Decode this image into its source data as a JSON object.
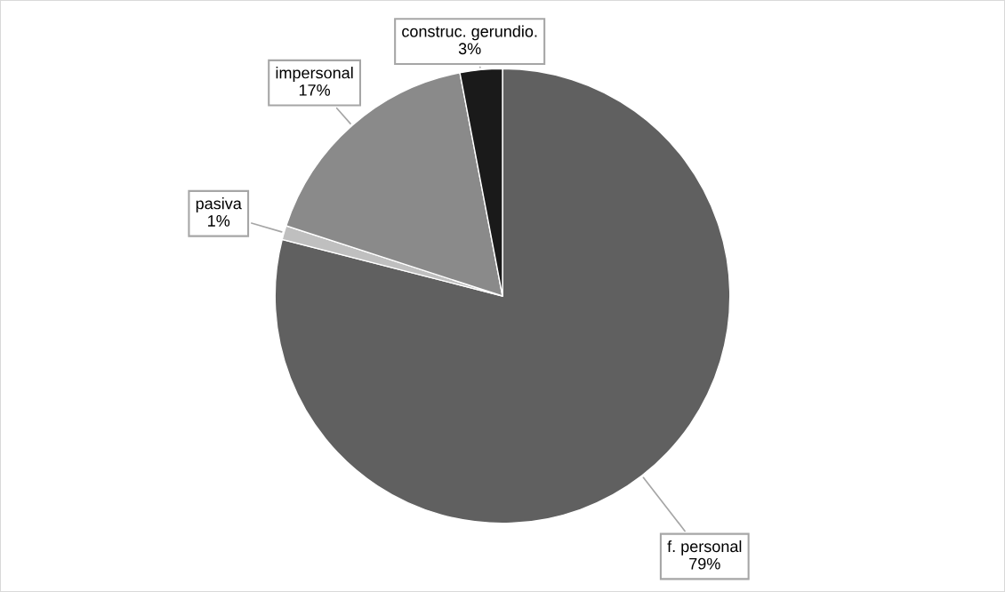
{
  "chart_data": {
    "type": "pie",
    "categories": [
      "f. personal",
      "pasiva",
      "impersonal",
      "construc. gerundio."
    ],
    "values": [
      79,
      1,
      17,
      3
    ],
    "value_labels": [
      "79%",
      "1%",
      "17%",
      "3%"
    ],
    "colors": [
      "#606060",
      "#bfbfbf",
      "#8a8a8a",
      "#1a1a1a"
    ],
    "legend": false
  }
}
